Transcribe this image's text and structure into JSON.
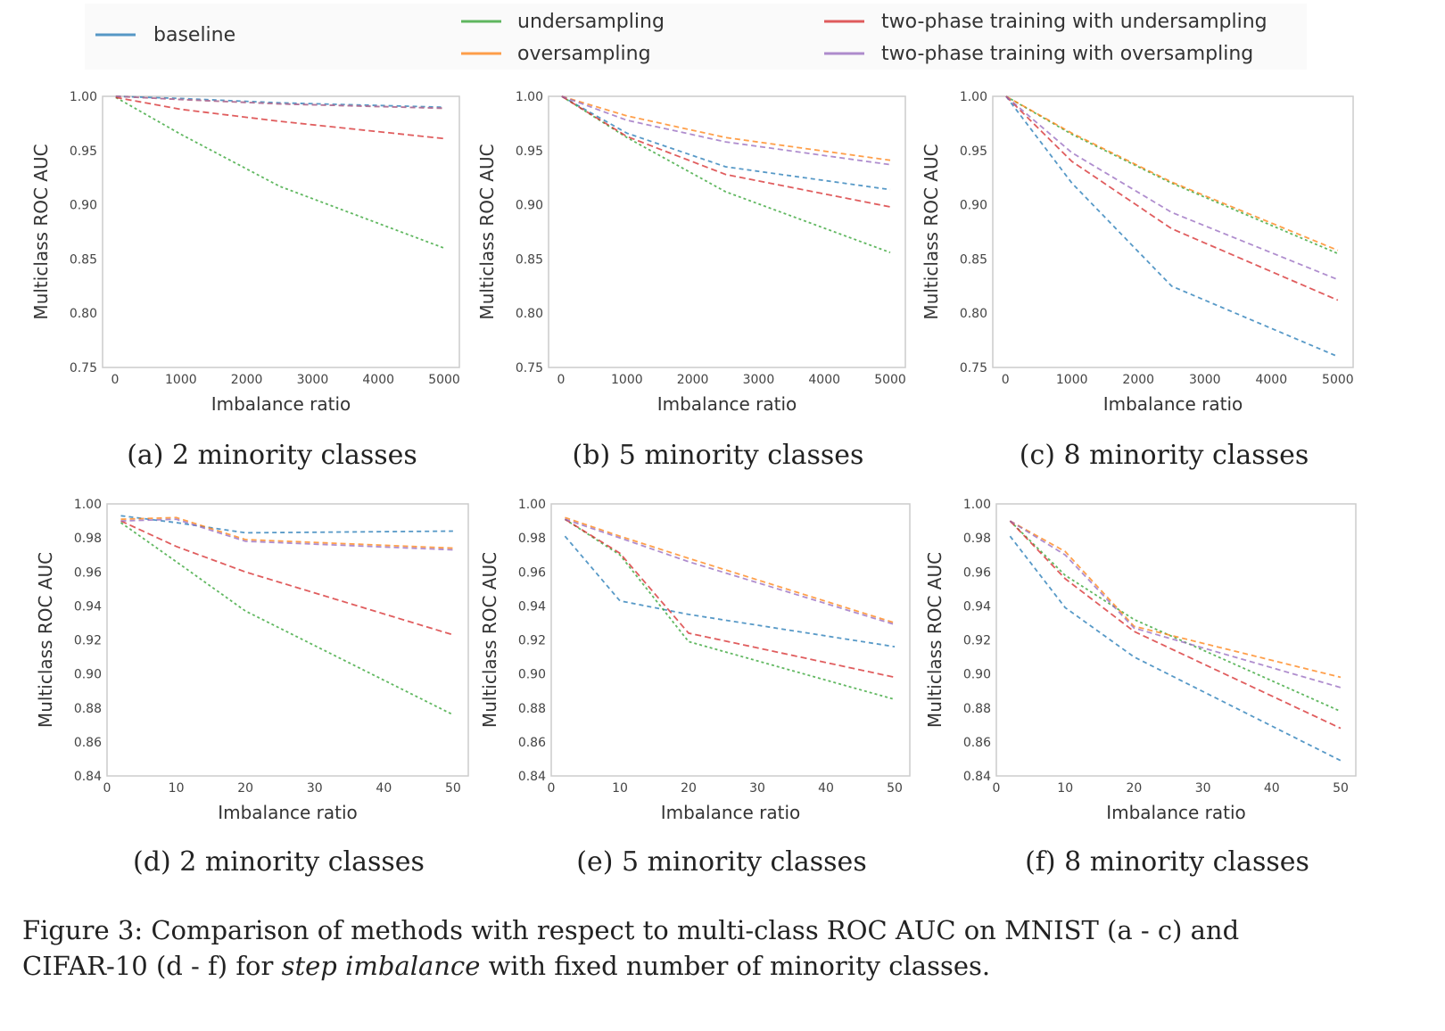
{
  "legend": {
    "items": [
      {
        "label": "baseline",
        "color": "#1f77b4"
      },
      {
        "label": "undersampling",
        "color": "#2ca02c"
      },
      {
        "label": "oversampling",
        "color": "#ff7f0e"
      },
      {
        "label": "two-phase training with undersampling",
        "color": "#d62728"
      },
      {
        "label": "two-phase training with oversampling",
        "color": "#9467bd"
      }
    ]
  },
  "caption": {
    "line1": "Figure 3: Comparison of methods with respect to multi-class ROC AUC on MNIST (a - c) and",
    "line2_pre": "CIFAR-10 (d - f) for ",
    "line2_italic": "step imbalance",
    "line2_post": " with fixed number of minority classes."
  },
  "chart_data": [
    {
      "type": "line",
      "subtitle": "(a) 2 minority classes",
      "xlabel": "Imbalance ratio",
      "ylabel": "Multiclass ROC AUC",
      "ylim": [
        0.75,
        1.0
      ],
      "xticks": [
        "0",
        "1000",
        "2000",
        "3000",
        "4000",
        "5000"
      ],
      "yticks": [
        "0.75",
        "0.80",
        "0.85",
        "0.90",
        "0.95",
        "1.00"
      ],
      "x": [
        10,
        1000,
        2500,
        5000
      ],
      "series": [
        {
          "name": "baseline",
          "values": [
            1.0,
            0.998,
            0.994,
            0.99
          ]
        },
        {
          "name": "undersampling",
          "values": [
            0.999,
            0.965,
            0.917,
            0.86
          ]
        },
        {
          "name": "oversampling",
          "values": [
            1.0,
            0.997,
            0.993,
            0.989
          ]
        },
        {
          "name": "two-phase training with undersampling",
          "values": [
            0.999,
            0.988,
            0.977,
            0.961
          ]
        },
        {
          "name": "two-phase training with oversampling",
          "values": [
            1.0,
            0.997,
            0.993,
            0.989
          ]
        }
      ]
    },
    {
      "type": "line",
      "subtitle": "(b) 5 minority classes",
      "xlabel": "Imbalance ratio",
      "ylabel": "Multiclass ROC AUC",
      "ylim": [
        0.75,
        1.0
      ],
      "xticks": [
        "0",
        "1000",
        "2000",
        "3000",
        "4000",
        "5000"
      ],
      "yticks": [
        "0.75",
        "0.80",
        "0.85",
        "0.90",
        "0.95",
        "1.00"
      ],
      "x": [
        10,
        1000,
        2500,
        5000
      ],
      "series": [
        {
          "name": "baseline",
          "values": [
            1.0,
            0.966,
            0.935,
            0.914
          ]
        },
        {
          "name": "undersampling",
          "values": [
            1.0,
            0.962,
            0.912,
            0.856
          ]
        },
        {
          "name": "oversampling",
          "values": [
            1.0,
            0.982,
            0.962,
            0.941
          ]
        },
        {
          "name": "two-phase training with undersampling",
          "values": [
            1.0,
            0.963,
            0.928,
            0.898
          ]
        },
        {
          "name": "two-phase training with oversampling",
          "values": [
            1.0,
            0.978,
            0.958,
            0.937
          ]
        }
      ]
    },
    {
      "type": "line",
      "subtitle": "(c) 8 minority classes",
      "xlabel": "Imbalance ratio",
      "ylabel": "Multiclass ROC AUC",
      "ylim": [
        0.75,
        1.0
      ],
      "xticks": [
        "0",
        "1000",
        "2000",
        "3000",
        "4000",
        "5000"
      ],
      "yticks": [
        "0.75",
        "0.80",
        "0.85",
        "0.90",
        "0.95",
        "1.00"
      ],
      "x": [
        10,
        1000,
        2500,
        5000
      ],
      "series": [
        {
          "name": "baseline",
          "values": [
            1.0,
            0.92,
            0.825,
            0.76
          ]
        },
        {
          "name": "undersampling",
          "values": [
            1.0,
            0.965,
            0.92,
            0.855
          ]
        },
        {
          "name": "oversampling",
          "values": [
            1.0,
            0.966,
            0.921,
            0.858
          ]
        },
        {
          "name": "two-phase training with undersampling",
          "values": [
            1.0,
            0.94,
            0.878,
            0.812
          ]
        },
        {
          "name": "two-phase training with oversampling",
          "values": [
            1.0,
            0.948,
            0.893,
            0.831
          ]
        }
      ]
    },
    {
      "type": "line",
      "subtitle": "(d) 2 minority classes",
      "xlabel": "Imbalance ratio",
      "ylabel": "Multiclass ROC AUC",
      "ylim": [
        0.84,
        1.0
      ],
      "xticks": [
        "0",
        "10",
        "20",
        "30",
        "40",
        "50"
      ],
      "yticks": [
        "0.84",
        "0.86",
        "0.88",
        "0.90",
        "0.92",
        "0.94",
        "0.96",
        "0.98",
        "1.00"
      ],
      "x": [
        2,
        10,
        20,
        50
      ],
      "series": [
        {
          "name": "baseline",
          "values": [
            0.993,
            0.989,
            0.983,
            0.984
          ]
        },
        {
          "name": "undersampling",
          "values": [
            0.989,
            0.966,
            0.937,
            0.876
          ]
        },
        {
          "name": "oversampling",
          "values": [
            0.991,
            0.992,
            0.979,
            0.974
          ]
        },
        {
          "name": "two-phase training with undersampling",
          "values": [
            0.99,
            0.975,
            0.96,
            0.923
          ]
        },
        {
          "name": "two-phase training with oversampling",
          "values": [
            0.99,
            0.991,
            0.978,
            0.973
          ]
        }
      ]
    },
    {
      "type": "line",
      "subtitle": "(e) 5 minority classes",
      "xlabel": "Imbalance ratio",
      "ylabel": "Multiclass ROC AUC",
      "ylim": [
        0.84,
        1.0
      ],
      "xticks": [
        "0",
        "10",
        "20",
        "30",
        "40",
        "50"
      ],
      "yticks": [
        "0.84",
        "0.86",
        "0.88",
        "0.90",
        "0.92",
        "0.94",
        "0.96",
        "0.98",
        "1.00"
      ],
      "x": [
        2,
        10,
        20,
        50
      ],
      "series": [
        {
          "name": "baseline",
          "values": [
            0.981,
            0.943,
            0.935,
            0.916
          ]
        },
        {
          "name": "undersampling",
          "values": [
            0.991,
            0.97,
            0.919,
            0.885
          ]
        },
        {
          "name": "oversampling",
          "values": [
            0.992,
            0.981,
            0.968,
            0.93
          ]
        },
        {
          "name": "two-phase training with undersampling",
          "values": [
            0.991,
            0.971,
            0.924,
            0.898
          ]
        },
        {
          "name": "two-phase training with oversampling",
          "values": [
            0.991,
            0.98,
            0.966,
            0.929
          ]
        }
      ]
    },
    {
      "type": "line",
      "subtitle": "(f) 8 minority classes",
      "xlabel": "Imbalance ratio",
      "ylabel": "Multiclass ROC AUC",
      "ylim": [
        0.84,
        1.0
      ],
      "xticks": [
        "0",
        "10",
        "20",
        "30",
        "40",
        "50"
      ],
      "yticks": [
        "0.84",
        "0.86",
        "0.88",
        "0.90",
        "0.92",
        "0.94",
        "0.96",
        "0.98",
        "1.00"
      ],
      "x": [
        2,
        10,
        20,
        50
      ],
      "series": [
        {
          "name": "baseline",
          "values": [
            0.981,
            0.939,
            0.91,
            0.849
          ]
        },
        {
          "name": "undersampling",
          "values": [
            0.99,
            0.958,
            0.932,
            0.878
          ]
        },
        {
          "name": "oversampling",
          "values": [
            0.99,
            0.972,
            0.928,
            0.898
          ]
        },
        {
          "name": "two-phase training with undersampling",
          "values": [
            0.99,
            0.956,
            0.925,
            0.868
          ]
        },
        {
          "name": "two-phase training with oversampling",
          "values": [
            0.99,
            0.97,
            0.927,
            0.892
          ]
        }
      ]
    }
  ]
}
